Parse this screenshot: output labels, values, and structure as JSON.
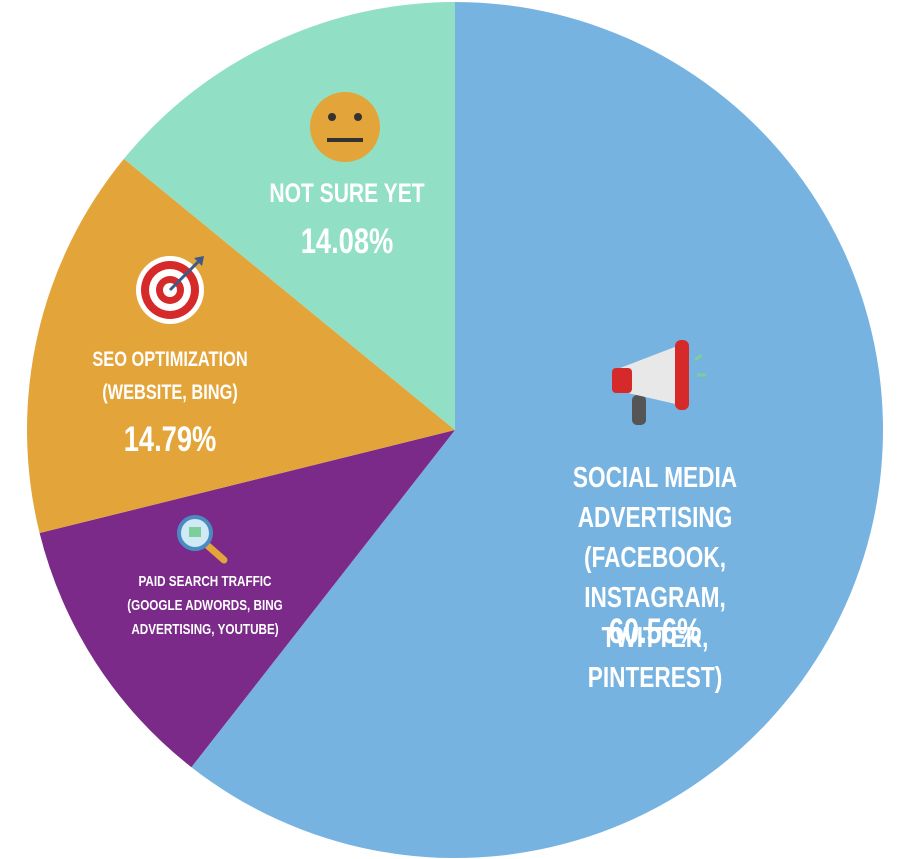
{
  "chart_data": {
    "type": "pie",
    "categories": [
      "SOCIAL MEDIA ADVERTISING\n(FACEBOOK, INSTAGRAM,\nTWITTER, PINTEREST)",
      "PAID SEARCH TRAFFIC\n(GOOGLE ADWORDS, BING\nADVERTISING, YOUTUBE)",
      "SEO OPTIMIZATION\n(WEBSITE, BING)",
      "NOT SURE YET"
    ],
    "values": [
      60.56,
      10.57,
      14.79,
      14.08
    ],
    "value_labels": [
      "60.56%",
      null,
      "14.79%",
      "14.08%"
    ],
    "colors": [
      "#77b3e1",
      "#7b2a8a",
      "#e3a43a",
      "#91e0c5"
    ]
  }
}
